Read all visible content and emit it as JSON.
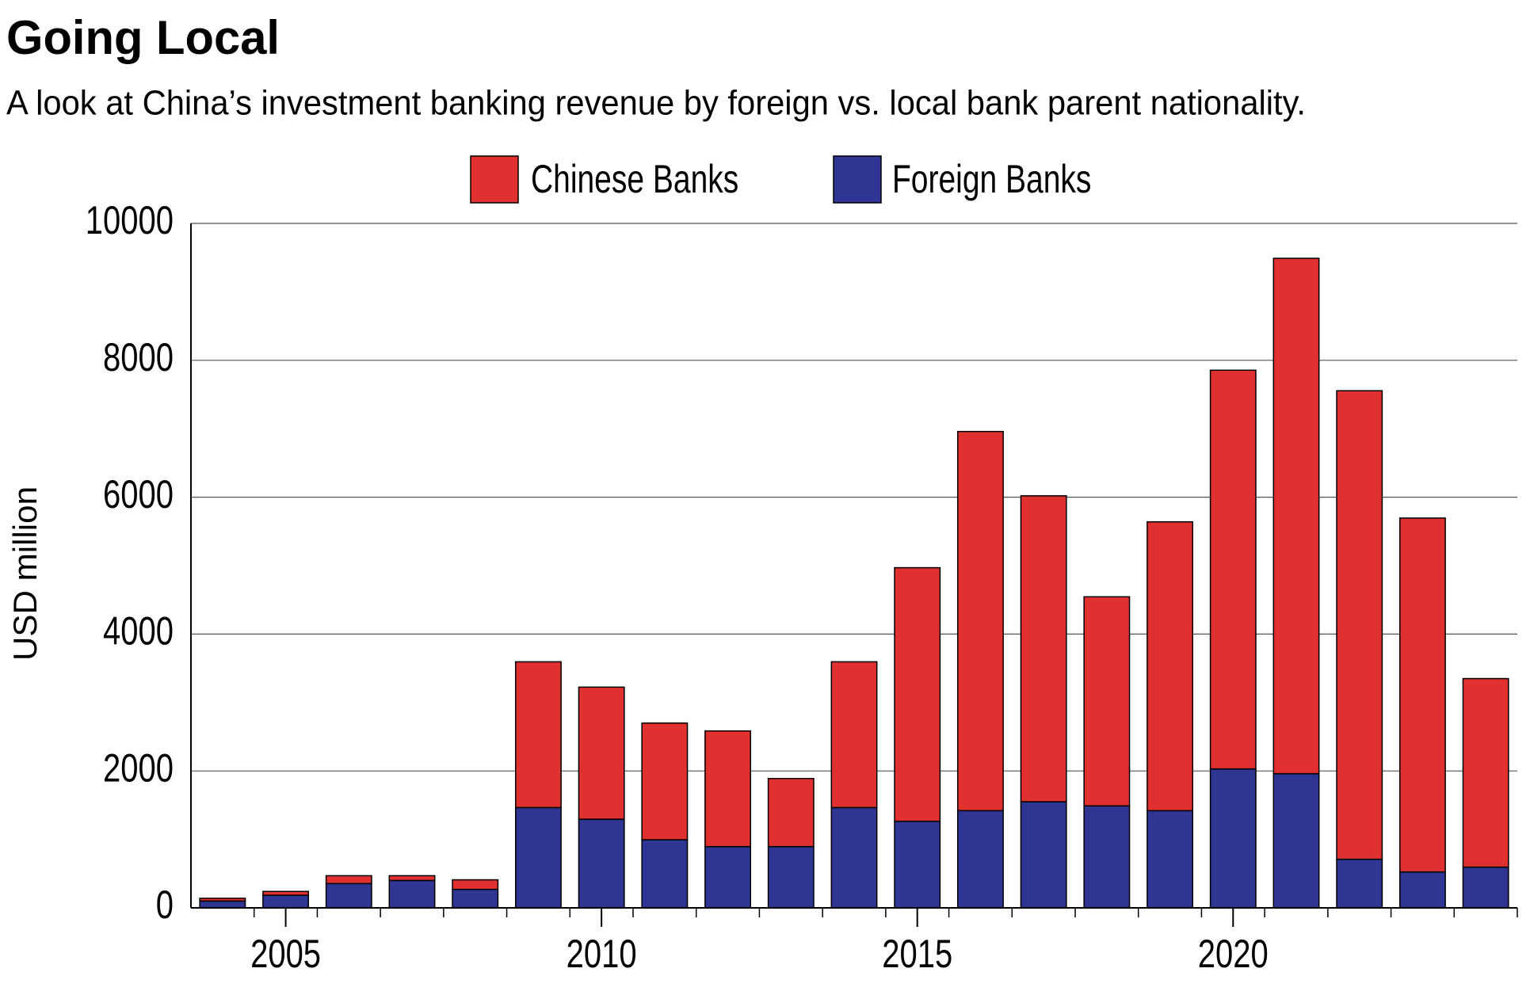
{
  "chart_data": {
    "type": "stacked_bar",
    "title": "Going Local",
    "subtitle": "A look at China’s investment banking revenue by foreign vs. local bank parent nationality.",
    "y_label": "USD million",
    "x": [
      2004,
      2005,
      2006,
      2007,
      2008,
      2009,
      2010,
      2011,
      2012,
      2013,
      2014,
      2015,
      2016,
      2017,
      2018,
      2019,
      2020,
      2021,
      2022,
      2023,
      2024
    ],
    "series": [
      {
        "name": "Chinese Banks",
        "color": "#e03030",
        "values": [
          40,
          55,
          115,
          70,
          140,
          2130,
          1930,
          1705,
          1690,
          995,
          2130,
          3705,
          5540,
          4470,
          3055,
          4220,
          5825,
          7530,
          6845,
          5170,
          2755
        ]
      },
      {
        "name": "Foreign Banks",
        "color": "#2e3592",
        "values": [
          100,
          185,
          355,
          400,
          270,
          1465,
          1295,
          995,
          895,
          895,
          1465,
          1265,
          1420,
          1550,
          1490,
          1420,
          2030,
          1960,
          710,
          525,
          595
        ]
      }
    ],
    "xlim": [
      2003.5,
      2024.5
    ],
    "xticks": [
      2005,
      2010,
      2015,
      2020
    ],
    "ylim": [
      0,
      10000
    ],
    "yticks": [
      0,
      2000,
      4000,
      6000,
      8000,
      10000
    ],
    "grid": true
  }
}
